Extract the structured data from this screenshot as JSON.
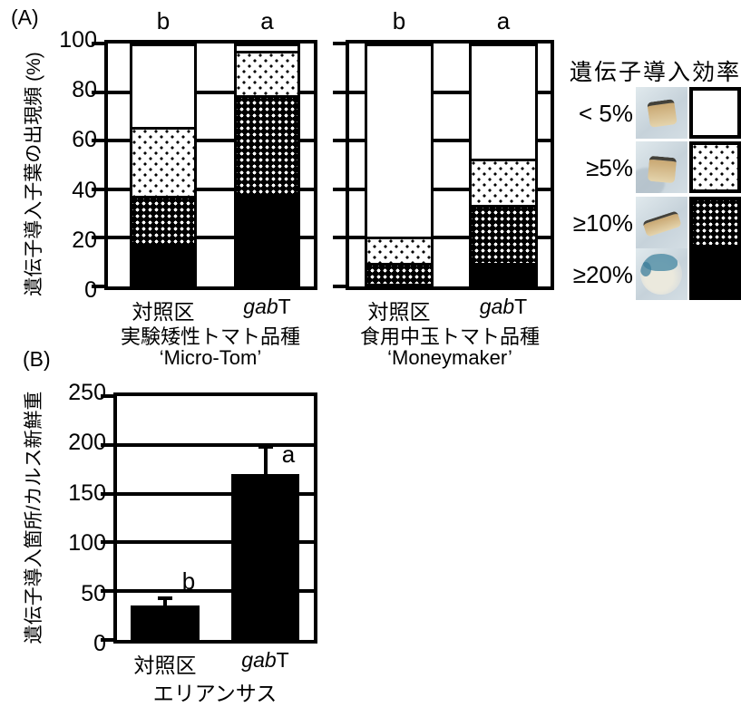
{
  "colors": {
    "ink": "#000000",
    "paper": "#ffffff",
    "photo_bg": "#ccd7de",
    "tissue": "#d6c6a0",
    "stain_blue": "#4b8ba6"
  },
  "panel_a": {
    "label": "(A)",
    "y_axis": {
      "title": "遺伝子導入子葉の出現頻 (%)",
      "ticks": [
        100,
        80,
        60,
        40,
        20,
        0
      ],
      "max": 100
    },
    "charts": [
      {
        "caption_line1": "実験矮性トマト品種",
        "caption_line2": "‘Micro-Tom’",
        "bars": [
          {
            "label_parts": [
              {
                "text": "対照区",
                "italic": false
              }
            ],
            "letter": "b",
            "segments": [
              {
                "pattern": "solid",
                "value": 16
              },
              {
                "pattern": "dense",
                "value": 20
              },
              {
                "pattern": "light",
                "value": 29
              },
              {
                "pattern": "white",
                "value": 35
              }
            ]
          },
          {
            "label_parts": [
              {
                "text": "gab",
                "italic": true
              },
              {
                "text": "T",
                "italic": false
              }
            ],
            "letter": "a",
            "segments": [
              {
                "pattern": "solid",
                "value": 38
              },
              {
                "pattern": "dense",
                "value": 42
              },
              {
                "pattern": "light",
                "value": 18
              },
              {
                "pattern": "white",
                "value": 2
              }
            ]
          }
        ]
      },
      {
        "caption_line1": "食用中玉トマト品種",
        "caption_line2": "‘Moneymaker’",
        "bars": [
          {
            "label_parts": [
              {
                "text": "対照区",
                "italic": false
              }
            ],
            "letter": "b",
            "segments": [
              {
                "pattern": "dense",
                "value": 8
              },
              {
                "pattern": "light",
                "value": 10
              },
              {
                "pattern": "white",
                "value": 82
              }
            ]
          },
          {
            "label_parts": [
              {
                "text": "gab",
                "italic": true
              },
              {
                "text": "T",
                "italic": false
              }
            ],
            "letter": "a",
            "segments": [
              {
                "pattern": "solid",
                "value": 8
              },
              {
                "pattern": "dense",
                "value": 24
              },
              {
                "pattern": "light",
                "value": 19
              },
              {
                "pattern": "white",
                "value": 49
              }
            ]
          }
        ]
      }
    ],
    "legend": {
      "title": "遺伝子導入効率",
      "items": [
        {
          "label": "< 5%",
          "pattern": "white",
          "photo": "tissue-plain"
        },
        {
          "label": "≥5%",
          "pattern": "light",
          "photo": "tissue-shadow"
        },
        {
          "label": "≥10%",
          "pattern": "dense",
          "photo": "tissue-strip"
        },
        {
          "label": "≥20%",
          "pattern": "solid",
          "photo": "tissue-blue-dish"
        }
      ]
    }
  },
  "panel_b": {
    "label": "(B)",
    "y_axis": {
      "title": "遺伝子導入箇所/カルス新鮮重",
      "ticks": [
        250,
        200,
        150,
        100,
        50,
        0
      ],
      "max": 250
    },
    "x_title": "エリアンサス",
    "bars": [
      {
        "label_parts": [
          {
            "text": "対照区",
            "italic": false
          }
        ],
        "letter": "b",
        "value": 35,
        "error_top": 45
      },
      {
        "label_parts": [
          {
            "text": "gab",
            "italic": true
          },
          {
            "text": "T",
            "italic": false
          }
        ],
        "letter": "a",
        "value": 170,
        "error_top": 200
      }
    ]
  },
  "chart_data": [
    {
      "type": "bar",
      "stacked": true,
      "panel": "A",
      "ylabel": "遺伝子導入子葉の出現頻 (%)",
      "ylim": [
        0,
        100
      ],
      "yticks": [
        0,
        20,
        40,
        60,
        80,
        100
      ],
      "grid": true,
      "legend_title": "遺伝子導入効率",
      "legend": [
        "< 5%",
        "≥5%",
        "≥10%",
        "≥20%"
      ],
      "legend_position": "right",
      "groups": [
        {
          "group_label": "実験矮性トマト品種 ‘Micro-Tom’",
          "categories": [
            "対照区",
            "gabT"
          ],
          "significance": [
            "b",
            "a"
          ],
          "series": [
            {
              "name": "< 5%",
              "values": [
                35,
                2
              ]
            },
            {
              "name": "≥5%",
              "values": [
                29,
                18
              ]
            },
            {
              "name": "≥10%",
              "values": [
                20,
                42
              ]
            },
            {
              "name": "≥20%",
              "values": [
                16,
                38
              ]
            }
          ]
        },
        {
          "group_label": "食用中玉トマト品種 ‘Moneymaker’",
          "categories": [
            "対照区",
            "gabT"
          ],
          "significance": [
            "b",
            "a"
          ],
          "series": [
            {
              "name": "< 5%",
              "values": [
                82,
                49
              ]
            },
            {
              "name": "≥5%",
              "values": [
                10,
                19
              ]
            },
            {
              "name": "≥10%",
              "values": [
                8,
                24
              ]
            },
            {
              "name": "≥20%",
              "values": [
                0,
                8
              ]
            }
          ]
        }
      ]
    },
    {
      "type": "bar",
      "panel": "B",
      "ylabel": "遺伝子導入箇所/カルス新鮮重",
      "xlabel": "エリアンサス",
      "ylim": [
        0,
        250
      ],
      "yticks": [
        0,
        50,
        100,
        150,
        200,
        250
      ],
      "grid": true,
      "categories": [
        "対照区",
        "gabT"
      ],
      "values": [
        35,
        170
      ],
      "error_bar_tops": [
        45,
        200
      ],
      "significance": [
        "b",
        "a"
      ],
      "bar_color": "#000000"
    }
  ]
}
